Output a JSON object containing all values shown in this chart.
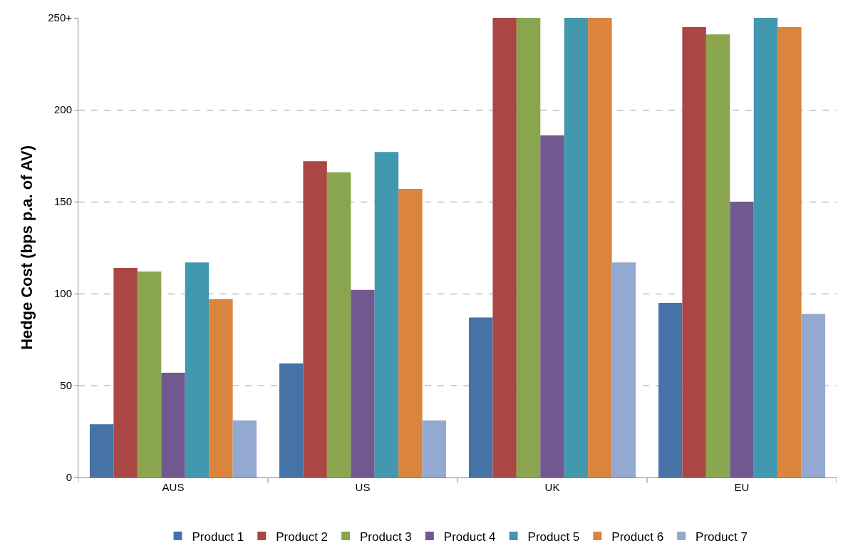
{
  "chart_data": {
    "type": "bar",
    "ylabel": "Hedge Cost (bps p.a. of AV)",
    "categories": [
      "AUS",
      "US",
      "UK",
      "EU"
    ],
    "series": [
      {
        "name": "Product 1",
        "color": "#4572a7",
        "values": [
          29,
          62,
          87,
          95
        ]
      },
      {
        "name": "Product 2",
        "color": "#aa4643",
        "values": [
          114,
          172,
          250,
          245
        ]
      },
      {
        "name": "Product 3",
        "color": "#89a54e",
        "values": [
          112,
          166,
          250,
          241
        ]
      },
      {
        "name": "Product 4",
        "color": "#71588f",
        "values": [
          57,
          102,
          186,
          150
        ]
      },
      {
        "name": "Product 5",
        "color": "#4198af",
        "values": [
          117,
          177,
          250,
          250
        ]
      },
      {
        "name": "Product 6",
        "color": "#db843d",
        "values": [
          97,
          157,
          250,
          245
        ]
      },
      {
        "name": "Product 7",
        "color": "#93a9cf",
        "values": [
          31,
          31,
          117,
          89
        ]
      }
    ],
    "ylim": [
      0,
      250
    ],
    "yticks": [
      0,
      50,
      100,
      150,
      200,
      {
        "value": 250,
        "label": "250+"
      }
    ],
    "grid": "y",
    "legend": "bottom"
  }
}
